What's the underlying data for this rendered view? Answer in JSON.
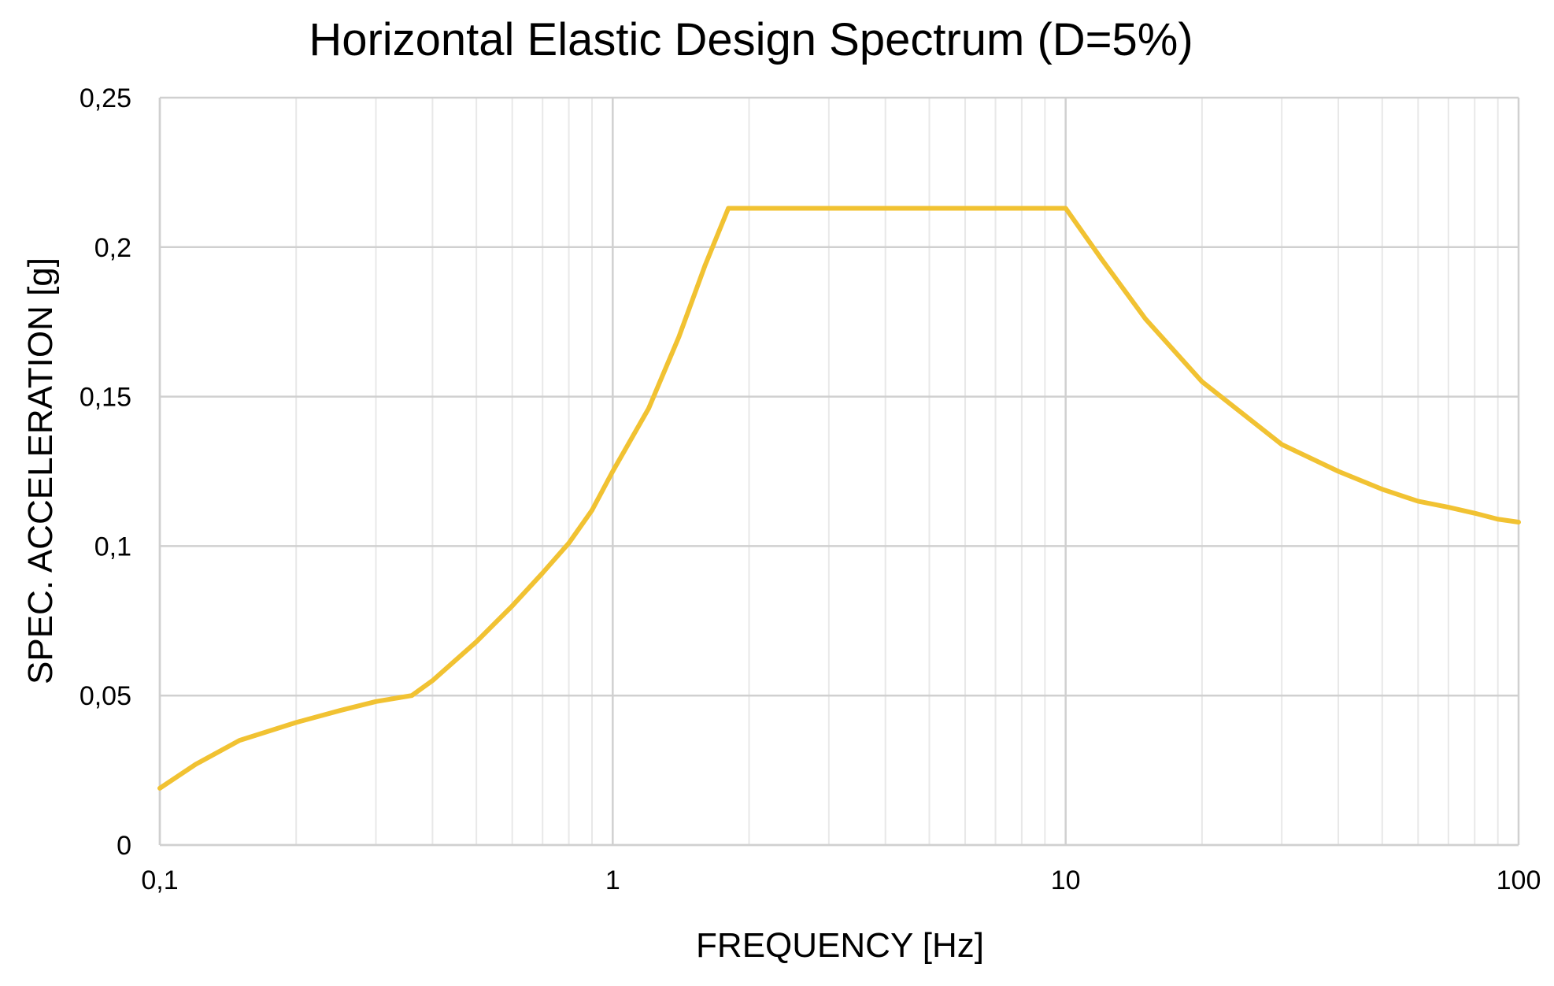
{
  "chart_data": {
    "type": "line",
    "title": "Horizontal Elastic Design Spectrum (D=5%)",
    "xlabel": "FREQUENCY [Hz]",
    "ylabel": "SPEC. ACCELERATION [g]",
    "x_scale": "log",
    "xlim": [
      0.1,
      100
    ],
    "ylim": [
      0,
      0.25
    ],
    "x_ticks": [
      {
        "value": 0.1,
        "label": "0,1"
      },
      {
        "value": 1,
        "label": "1"
      },
      {
        "value": 10,
        "label": "10"
      },
      {
        "value": 100,
        "label": "100"
      }
    ],
    "y_ticks": [
      {
        "value": 0,
        "label": "0"
      },
      {
        "value": 0.05,
        "label": "0,05"
      },
      {
        "value": 0.1,
        "label": "0,1"
      },
      {
        "value": 0.15,
        "label": "0,15"
      },
      {
        "value": 0.2,
        "label": "0,2"
      },
      {
        "value": 0.25,
        "label": "0,25"
      }
    ],
    "grid": true,
    "minor_grid": true,
    "legend": "none",
    "series": [
      {
        "color": "#F1C232",
        "x": [
          0.1,
          0.12,
          0.15,
          0.2,
          0.25,
          0.3,
          0.36,
          0.4,
          0.5,
          0.6,
          0.7,
          0.8,
          0.9,
          1.0,
          1.2,
          1.4,
          1.6,
          1.8,
          3,
          5,
          8,
          10,
          12,
          15,
          20,
          30,
          40,
          50,
          60,
          70,
          80,
          90,
          100
        ],
        "y": [
          0.019,
          0.027,
          0.035,
          0.041,
          0.045,
          0.048,
          0.05,
          0.055,
          0.068,
          0.08,
          0.091,
          0.101,
          0.112,
          0.125,
          0.146,
          0.17,
          0.194,
          0.213,
          0.213,
          0.213,
          0.213,
          0.213,
          0.196,
          0.176,
          0.155,
          0.134,
          0.125,
          0.119,
          0.115,
          0.113,
          0.111,
          0.109,
          0.108
        ]
      }
    ]
  }
}
